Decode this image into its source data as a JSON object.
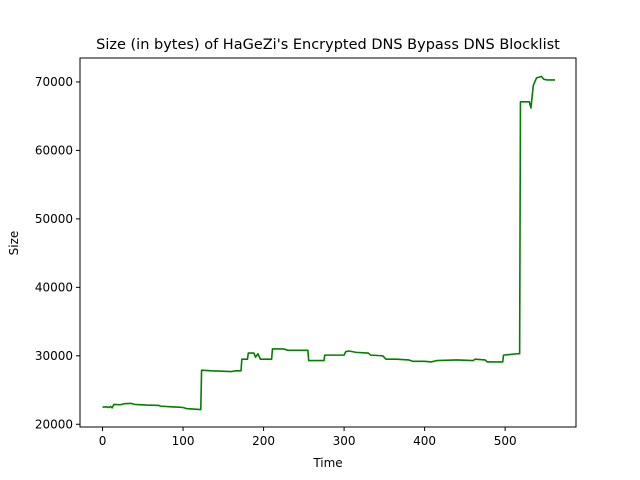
{
  "chart_data": {
    "type": "line",
    "title": "Size (in bytes) of HaGeZi's Encrypted DNS Bypass DNS Blocklist",
    "xlabel": "Time",
    "ylabel": "Size",
    "xlim": [
      -28,
      588
    ],
    "ylim": [
      19600,
      73500
    ],
    "x_ticks": [
      0,
      100,
      200,
      300,
      400,
      500
    ],
    "y_ticks": [
      20000,
      30000,
      40000,
      50000,
      60000,
      70000
    ],
    "grid": false,
    "legend": "none",
    "series": [
      {
        "color": "#008000",
        "points": [
          [
            0,
            22500
          ],
          [
            5,
            22550
          ],
          [
            8,
            22450
          ],
          [
            10,
            22600
          ],
          [
            12,
            22400
          ],
          [
            14,
            22900
          ],
          [
            22,
            22850
          ],
          [
            27,
            23000
          ],
          [
            35,
            23050
          ],
          [
            40,
            22900
          ],
          [
            55,
            22800
          ],
          [
            70,
            22750
          ],
          [
            72,
            22650
          ],
          [
            85,
            22550
          ],
          [
            95,
            22500
          ],
          [
            100,
            22450
          ],
          [
            104,
            22300
          ],
          [
            115,
            22200
          ],
          [
            122,
            22150
          ],
          [
            123,
            27900
          ],
          [
            135,
            27800
          ],
          [
            160,
            27700
          ],
          [
            165,
            27800
          ],
          [
            172,
            27800
          ],
          [
            173,
            29500
          ],
          [
            180,
            29500
          ],
          [
            181,
            30400
          ],
          [
            188,
            30400
          ],
          [
            190,
            29800
          ],
          [
            193,
            30300
          ],
          [
            196,
            29500
          ],
          [
            210,
            29500
          ],
          [
            211,
            31000
          ],
          [
            225,
            31000
          ],
          [
            230,
            30800
          ],
          [
            255,
            30800
          ],
          [
            256,
            29300
          ],
          [
            275,
            29300
          ],
          [
            276,
            30100
          ],
          [
            300,
            30100
          ],
          [
            302,
            30600
          ],
          [
            306,
            30700
          ],
          [
            315,
            30500
          ],
          [
            330,
            30400
          ],
          [
            333,
            30100
          ],
          [
            348,
            30000
          ],
          [
            352,
            29500
          ],
          [
            365,
            29500
          ],
          [
            380,
            29400
          ],
          [
            385,
            29200
          ],
          [
            400,
            29200
          ],
          [
            408,
            29100
          ],
          [
            415,
            29300
          ],
          [
            440,
            29400
          ],
          [
            460,
            29300
          ],
          [
            463,
            29500
          ],
          [
            475,
            29400
          ],
          [
            478,
            29100
          ],
          [
            497,
            29100
          ],
          [
            498,
            30100
          ],
          [
            515,
            30300
          ],
          [
            518,
            30300
          ],
          [
            519,
            67100
          ],
          [
            530,
            67100
          ],
          [
            532,
            66200
          ],
          [
            535,
            69500
          ],
          [
            539,
            70600
          ],
          [
            545,
            70800
          ],
          [
            548,
            70400
          ],
          [
            552,
            70300
          ],
          [
            562,
            70300
          ]
        ]
      }
    ]
  }
}
